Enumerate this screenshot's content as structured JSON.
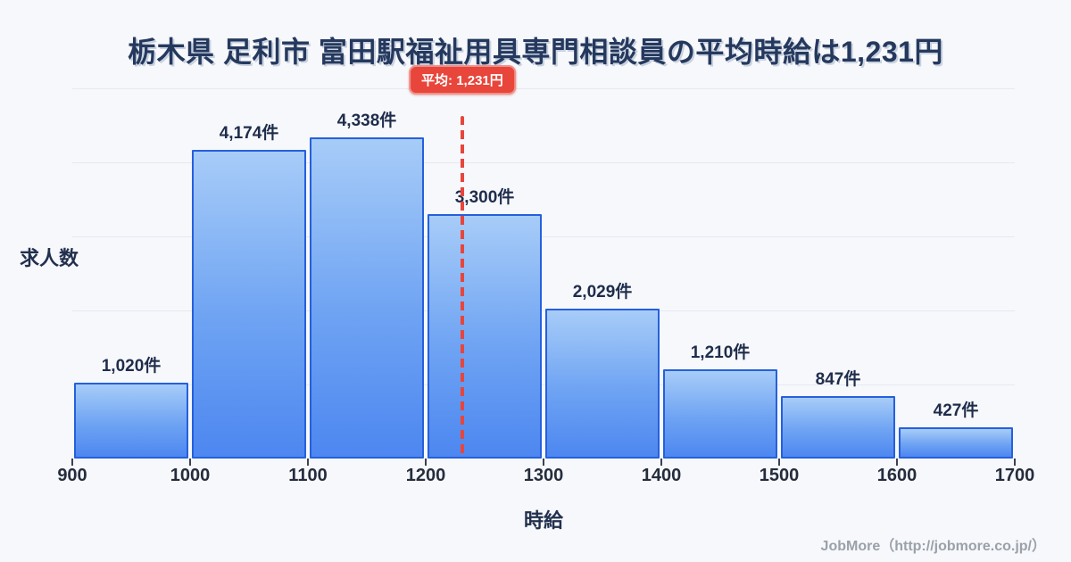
{
  "title": "栃木県 足利市 富田駅福祉用具専門相談員の平均時給は1,231円",
  "chart_data": {
    "type": "bar",
    "title": "栃木県 足利市 富田駅福祉用具専門相談員の平均時給は1,231円",
    "xlabel": "時給",
    "ylabel": "求人数",
    "x_range": [
      900,
      1700
    ],
    "bin_width": 100,
    "x_ticks": [
      "900",
      "1000",
      "1100",
      "1200",
      "1300",
      "1400",
      "1500",
      "1600",
      "1700"
    ],
    "ylim": [
      0,
      5000
    ],
    "grid_interval": 1000,
    "grid_on": true,
    "bins": [
      {
        "start": 900,
        "end": 1000,
        "count": 1020,
        "label": "1,020件"
      },
      {
        "start": 1000,
        "end": 1100,
        "count": 4174,
        "label": "4,174件"
      },
      {
        "start": 1100,
        "end": 1200,
        "count": 4338,
        "label": "4,338件"
      },
      {
        "start": 1200,
        "end": 1300,
        "count": 3300,
        "label": "3,300件"
      },
      {
        "start": 1300,
        "end": 1400,
        "count": 2029,
        "label": "2,029件"
      },
      {
        "start": 1400,
        "end": 1500,
        "count": 1210,
        "label": "1,210件"
      },
      {
        "start": 1500,
        "end": 1600,
        "count": 847,
        "label": "847件"
      },
      {
        "start": 1600,
        "end": 1700,
        "count": 427,
        "label": "427件"
      }
    ],
    "average": {
      "value": 1231,
      "label": "平均: 1,231円"
    },
    "colors": {
      "background": "#f7f8fb",
      "bar_top": "#a7ccf8",
      "bar_bottom": "#4d87f0",
      "bar_border": "#2560dd",
      "average_red": "#e8453b",
      "grid": "#e5e9f1",
      "text_dark": "#22304e",
      "footer_gray": "#9aa1aa"
    }
  },
  "footer": {
    "credit": "JobMore（http://jobmore.co.jp/）"
  }
}
